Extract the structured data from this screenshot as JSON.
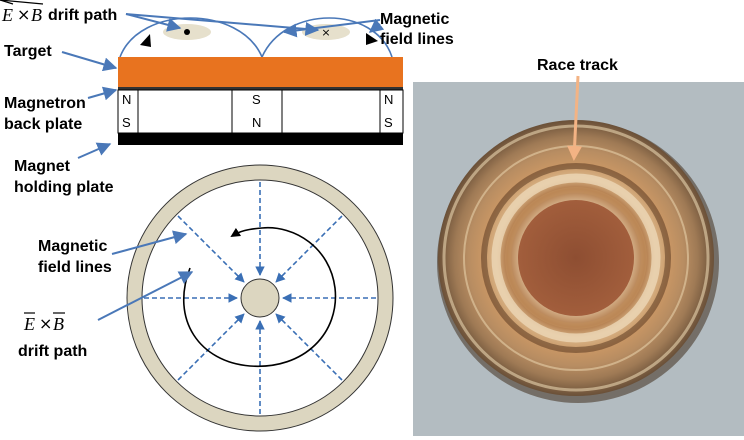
{
  "labels": {
    "drift_path_top": "drift path",
    "magnetic_field_lines_top": [
      "Magnetic",
      "field lines"
    ],
    "target": "Target",
    "magnetron_back_plate": [
      "Magnetron",
      "back plate"
    ],
    "magnet_holding_plate": [
      "Magnet",
      "holding plate"
    ],
    "magnetic_field_lines_bottom": [
      "Magnetic",
      "field lines"
    ],
    "drift_path_bottom": "drift path",
    "race_track": "Race track"
  },
  "equation": {
    "e": "E",
    "times": "×",
    "b": "B"
  },
  "poles": {
    "left": [
      "N",
      "S"
    ],
    "center": [
      "S",
      "N"
    ],
    "right": [
      "N",
      "S"
    ]
  },
  "colors": {
    "target": "#e8731f",
    "arrow_blue": "#4a78b8",
    "field_dash": "#3a6fb5",
    "ring": "#dcd6c0",
    "race_arrow": "#f3b384",
    "photo_bg": "#b9c2c6"
  }
}
